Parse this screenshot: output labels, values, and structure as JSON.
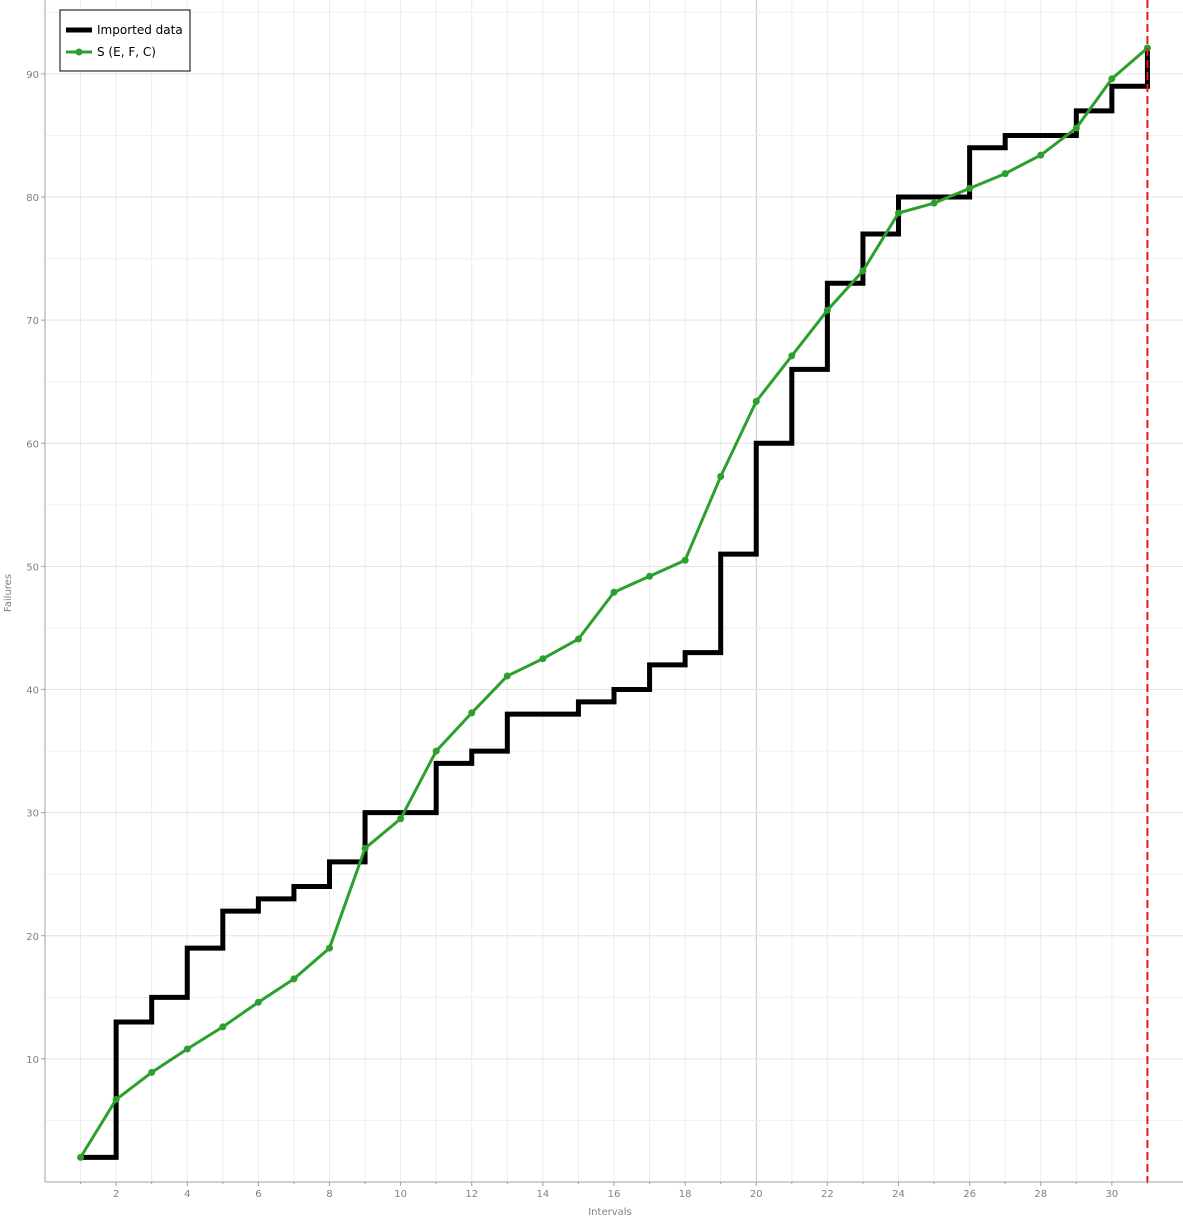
{
  "chart_data": {
    "type": "line",
    "title": "",
    "xlabel": "Intervals",
    "ylabel": "Failures",
    "xlim": [
      0,
      32
    ],
    "ylim": [
      0,
      96
    ],
    "x_ticks": [
      2,
      4,
      6,
      8,
      10,
      12,
      14,
      16,
      18,
      20,
      22,
      24,
      26,
      28,
      30
    ],
    "y_ticks": [
      10,
      20,
      30,
      40,
      50,
      60,
      70,
      80,
      90
    ],
    "grid": true,
    "legend_position": "top-left",
    "reference_line": {
      "x": 31,
      "color": "#e41a1c",
      "style": "dashed"
    },
    "series": [
      {
        "name": "Imported data",
        "style": "step",
        "color": "#000000",
        "x": [
          1,
          2,
          3,
          4,
          5,
          6,
          7,
          8,
          9,
          10,
          11,
          12,
          13,
          14,
          15,
          16,
          17,
          18,
          19,
          20,
          21,
          22,
          23,
          24,
          25,
          26,
          27,
          28,
          29,
          30,
          31
        ],
        "y": [
          2,
          13,
          15,
          19,
          22,
          23,
          24,
          26,
          30,
          30,
          34,
          35,
          38,
          38,
          39,
          40,
          42,
          43,
          51,
          60,
          66,
          73,
          77,
          80,
          80,
          84,
          85,
          85,
          87,
          89,
          92
        ]
      },
      {
        "name": "S (E, F, C)",
        "style": "line-markers",
        "color": "#2ca02c",
        "x": [
          1,
          2,
          3,
          4,
          5,
          6,
          7,
          8,
          9,
          10,
          11,
          12,
          13,
          14,
          15,
          16,
          17,
          18,
          19,
          20,
          21,
          22,
          23,
          24,
          25,
          26,
          27,
          28,
          29,
          30,
          31
        ],
        "y": [
          2.0,
          6.7,
          8.9,
          10.8,
          12.6,
          14.6,
          16.5,
          19.0,
          27.1,
          29.5,
          35.0,
          38.1,
          41.1,
          42.5,
          44.1,
          47.9,
          49.2,
          50.5,
          57.3,
          63.4,
          67.1,
          70.8,
          74.0,
          78.7,
          79.5,
          80.7,
          81.9,
          83.4,
          85.6,
          89.6,
          92.1
        ]
      }
    ]
  }
}
